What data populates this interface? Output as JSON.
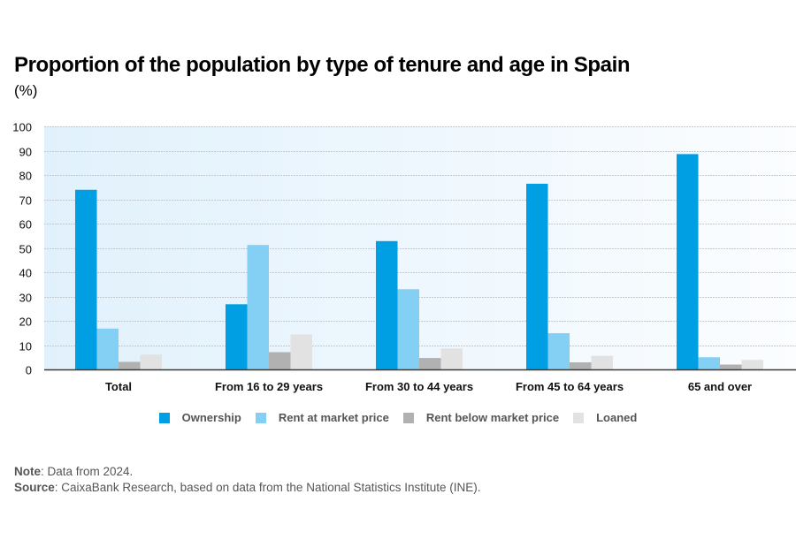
{
  "chart_data": {
    "type": "bar",
    "title": "Proportion of the population by type of tenure and age in Spain",
    "subtitle": "(%)",
    "xlabel": "",
    "ylabel": "",
    "ylim": [
      0,
      100
    ],
    "yticks": [
      0,
      10,
      20,
      30,
      40,
      50,
      60,
      70,
      80,
      90,
      100
    ],
    "grid": true,
    "legend_position": "bottom",
    "categories": [
      "Total",
      "From 16 to 29 years",
      "From 30 to 44 years",
      "From 45 to 64 years",
      "65 and over"
    ],
    "series": [
      {
        "name": "Ownership",
        "color": "#009fe3",
        "values": [
          73.9,
          26.8,
          52.8,
          76.4,
          88.6
        ]
      },
      {
        "name": "Rent at market price",
        "color": "#84d0f5",
        "values": [
          16.8,
          51.2,
          33.0,
          14.9,
          5.0
        ]
      },
      {
        "name": "Rent below market price",
        "color": "#b1b1b1",
        "values": [
          3.1,
          7.1,
          4.7,
          2.9,
          2.0
        ]
      },
      {
        "name": "Loaned",
        "color": "#e2e2e2",
        "values": [
          6.1,
          14.4,
          8.6,
          5.6,
          3.9
        ]
      }
    ]
  },
  "notes": {
    "note_label": "Note",
    "note_text": ": Data from 2024.",
    "source_label": "Source",
    "source_text": ": CaixaBank Research, based on data from the National Statistics Institute (INE)."
  }
}
